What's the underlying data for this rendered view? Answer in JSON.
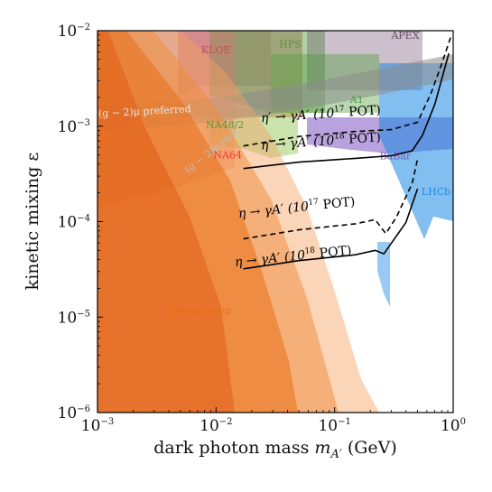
{
  "chart_data": {
    "type": "area",
    "xlabel": "dark photon mass m_{A'} (GeV)",
    "xlabel_parts": {
      "main": "dark photon mass ",
      "sym": "m",
      "sub": "A′",
      "unit": " (GeV)"
    },
    "ylabel": "kinetic mixing ε",
    "x_scale": "log",
    "y_scale": "log",
    "xlim": [
      0.001,
      1
    ],
    "ylim": [
      1e-06,
      0.01
    ],
    "x_ticks": [
      {
        "value": 0.001,
        "base": "10",
        "exp": "−3"
      },
      {
        "value": 0.01,
        "base": "10",
        "exp": "−2"
      },
      {
        "value": 0.1,
        "base": "10",
        "exp": "−1"
      },
      {
        "value": 1,
        "base": "10",
        "exp": "0"
      }
    ],
    "y_ticks": [
      {
        "value": 1e-06,
        "base": "10",
        "exp": "−6"
      },
      {
        "value": 1e-05,
        "base": "10",
        "exp": "−5"
      },
      {
        "value": 0.0001,
        "base": "10",
        "exp": "−4"
      },
      {
        "value": 0.001,
        "base": "10",
        "exp": "−3"
      },
      {
        "value": 0.01,
        "base": "10",
        "exp": "−2"
      }
    ],
    "regions": [
      {
        "name": "KLOE",
        "color": "#c0504d",
        "label": "KLOE",
        "label_at": [
          0.0075,
          0.0058
        ]
      },
      {
        "name": "HPS",
        "color": "#4f9a3a",
        "label": "HPS",
        "label_at": [
          0.034,
          0.0067
        ]
      },
      {
        "name": "APEX",
        "color": "#6b4a6b",
        "label": "APEX",
        "label_at": [
          0.3,
          0.0082
        ]
      },
      {
        "name": "A1",
        "color": "#4f9a3a",
        "label": "A1",
        "label_at": [
          0.135,
          0.00175
        ]
      },
      {
        "name": "NA48/2",
        "color": "#4f9a3a",
        "label": "NA48/2",
        "label_at": [
          0.0082,
          0.00095
        ]
      },
      {
        "name": "BaBar",
        "color": "#7e57c2",
        "label": "BaBar",
        "label_at": [
          0.24,
          0.00045
        ]
      },
      {
        "name": "NA64",
        "color": "#e53935",
        "label": "NA64",
        "label_at": [
          0.0095,
          0.00046
        ]
      },
      {
        "name": "LHCb",
        "color": "#1e88e5",
        "label": "LHCb",
        "label_at": [
          0.54,
          0.00019
        ]
      },
      {
        "name": "(g-2)_mu preferred",
        "color": "#9e9e9e",
        "label": "(g − 2)μ preferred",
        "label_at": [
          0.00102,
          0.00125
        ]
      },
      {
        "name": "(g-2)_e excl.",
        "color": "#bdbdbd",
        "label": "(g − 2)e excl.",
        "label_at": [
          0.0058,
          0.00032
        ]
      },
      {
        "name": "Beam dump",
        "color": "#e8701a",
        "label": "Beam dump",
        "label_at": [
          0.0042,
          1.1e-05
        ]
      }
    ],
    "series": [
      {
        "name": "η′ → γA′ (10^17 POT)",
        "style": "dashed",
        "label": {
          "pre": "η′ → γA′ (10",
          "exp": "17",
          "post": " POT)"
        },
        "label_at": [
          0.024,
          0.0011
        ],
        "label_rot": -4,
        "points": [
          [
            0.017,
            0.00062
          ],
          [
            0.05,
            0.00078
          ],
          [
            0.15,
            0.00088
          ],
          [
            0.3,
            0.00092
          ],
          [
            0.5,
            0.0011
          ],
          [
            0.65,
            0.0022
          ],
          [
            0.8,
            0.0045
          ],
          [
            0.95,
            0.0085
          ]
        ]
      },
      {
        "name": "η′ → γA′ (10^18 POT)",
        "style": "solid",
        "label": {
          "pre": "η′ → γA′ (10",
          "exp": "18",
          "post": " POT)"
        },
        "label_at": [
          0.024,
          0.00057
        ],
        "label_rot": -4,
        "points": [
          [
            0.017,
            0.00036
          ],
          [
            0.05,
            0.00042
          ],
          [
            0.15,
            0.00046
          ],
          [
            0.3,
            0.00049
          ],
          [
            0.45,
            0.00055
          ],
          [
            0.55,
            0.0008
          ],
          [
            0.7,
            0.0017
          ],
          [
            0.92,
            0.0058
          ]
        ]
      },
      {
        "name": "η → γA′ (10^17 POT)",
        "style": "dashed",
        "label": {
          "pre": "η → γA′ (10",
          "exp": "17",
          "post": " POT)"
        },
        "label_at": [
          0.0155,
          0.00011
        ],
        "label_rot": -6,
        "points": [
          [
            0.017,
            6.6e-05
          ],
          [
            0.05,
            8.2e-05
          ],
          [
            0.15,
            9.5e-05
          ],
          [
            0.22,
            0.000105
          ],
          [
            0.27,
            7.5e-05
          ],
          [
            0.33,
            0.00011
          ],
          [
            0.45,
            0.00025
          ],
          [
            0.5,
            0.00045
          ]
        ]
      },
      {
        "name": "η → γA′ (10^18 POT)",
        "style": "solid",
        "label": {
          "pre": "η → γA′ (10",
          "exp": "18",
          "post": " POT)"
        },
        "label_at": [
          0.0145,
          3.4e-05
        ],
        "label_rot": -6,
        "points": [
          [
            0.017,
            3.2e-05
          ],
          [
            0.05,
            3.9e-05
          ],
          [
            0.15,
            4.5e-05
          ],
          [
            0.22,
            5e-05
          ],
          [
            0.26,
            4.6e-05
          ],
          [
            0.4,
            9.8e-05
          ],
          [
            0.5,
            0.00022
          ]
        ]
      }
    ]
  }
}
